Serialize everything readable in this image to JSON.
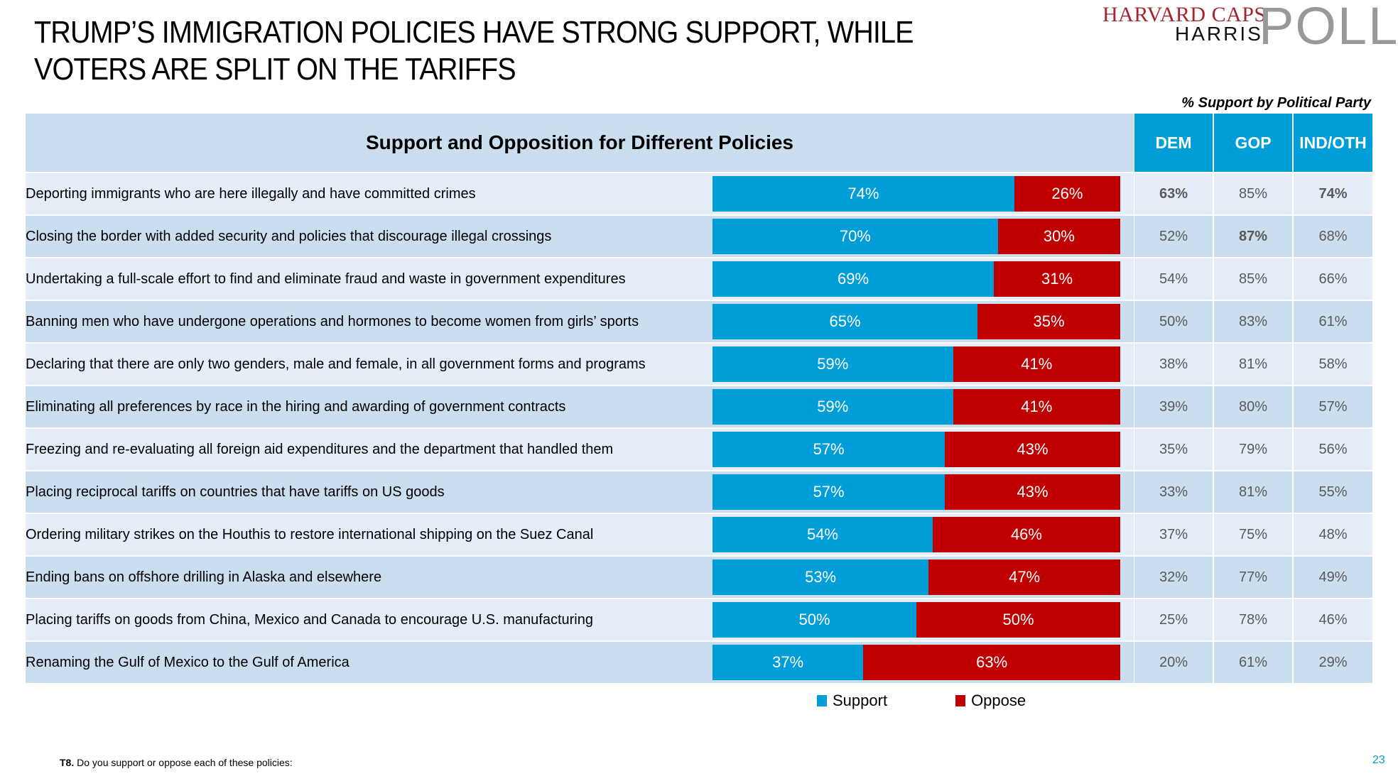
{
  "title": "TRUMP’S IMMIGRATION POLICIES HAVE STRONG SUPPORT, WHILE VOTERS ARE SPLIT ON THE TARIFFS",
  "title_lines": [
    "TRUMP’S IMMIGRATION POLICIES HAVE STRONG SUPPORT, WHILE",
    "VOTERS ARE SPLIT ON THE TARIFFS"
  ],
  "logo": {
    "line1": "HARVARD CAPS",
    "line2": "HARRIS",
    "mark": "POLL"
  },
  "party_caption": "% Support by Political Party",
  "table_header": "Support and Opposition for Different Policies",
  "party_columns": [
    "DEM",
    "GOP",
    "IND/OTH"
  ],
  "colors": {
    "support": "#009ed9",
    "oppose": "#c00000",
    "header_party": "#009ed9",
    "row_light": "#e5eef8",
    "row_dark": "#cbdef0",
    "page_number": "#009ed9"
  },
  "legend": {
    "support": "Support",
    "oppose": "Oppose"
  },
  "footnote": {
    "code": "T8.",
    "text": " Do you support or oppose each of these policies:"
  },
  "page_number": "23",
  "chart_data": {
    "type": "bar",
    "orientation": "horizontal",
    "stacked": true,
    "title": "Support and Opposition for Different Policies",
    "xlabel": "",
    "ylabel": "",
    "xlim": [
      0,
      100
    ],
    "legend_position": "bottom",
    "categories": [
      "Deporting immigrants who are here illegally and have committed crimes",
      "Closing the border with added security and policies that discourage illegal crossings",
      "Undertaking a full-scale effort to find and eliminate fraud and waste in government expenditures",
      "Banning men who have undergone operations and hormones to become women from girls’ sports",
      "Declaring that there are only two genders, male and female, in all government forms and programs",
      "Eliminating all preferences by race in the hiring and awarding of government contracts",
      "Freezing and re-evaluating all foreign aid expenditures and the department that handled them",
      "Placing reciprocal tariffs on countries that have tariffs on US goods",
      "Ordering military strikes on the Houthis to restore international shipping on the Suez Canal",
      "Ending bans on offshore drilling in Alaska and elsewhere",
      "Placing tariffs on goods from China, Mexico and Canada to encourage U.S. manufacturing",
      "Renaming the Gulf of Mexico to the Gulf of America"
    ],
    "series": [
      {
        "name": "Support",
        "values": [
          74,
          70,
          69,
          65,
          59,
          59,
          57,
          57,
          54,
          53,
          50,
          37
        ]
      },
      {
        "name": "Oppose",
        "values": [
          26,
          30,
          31,
          35,
          41,
          41,
          43,
          43,
          46,
          47,
          50,
          63
        ]
      }
    ],
    "party_support": {
      "title": "% Support by Political Party",
      "columns": [
        "DEM",
        "GOP",
        "IND/OTH"
      ],
      "rows": [
        {
          "values": [
            "63%",
            "85%",
            "74%"
          ],
          "bold": [
            true,
            false,
            true
          ]
        },
        {
          "values": [
            "52%",
            "87%",
            "68%"
          ],
          "bold": [
            false,
            true,
            false
          ]
        },
        {
          "values": [
            "54%",
            "85%",
            "66%"
          ],
          "bold": [
            false,
            false,
            false
          ]
        },
        {
          "values": [
            "50%",
            "83%",
            "61%"
          ],
          "bold": [
            false,
            false,
            false
          ]
        },
        {
          "values": [
            "38%",
            "81%",
            "58%"
          ],
          "bold": [
            false,
            false,
            false
          ]
        },
        {
          "values": [
            "39%",
            "80%",
            "57%"
          ],
          "bold": [
            false,
            false,
            false
          ]
        },
        {
          "values": [
            "35%",
            "79%",
            "56%"
          ],
          "bold": [
            false,
            false,
            false
          ]
        },
        {
          "values": [
            "33%",
            "81%",
            "55%"
          ],
          "bold": [
            false,
            false,
            false
          ]
        },
        {
          "values": [
            "37%",
            "75%",
            "48%"
          ],
          "bold": [
            false,
            false,
            false
          ]
        },
        {
          "values": [
            "32%",
            "77%",
            "49%"
          ],
          "bold": [
            false,
            false,
            false
          ]
        },
        {
          "values": [
            "25%",
            "78%",
            "46%"
          ],
          "bold": [
            false,
            false,
            false
          ]
        },
        {
          "values": [
            "20%",
            "61%",
            "29%"
          ],
          "bold": [
            false,
            false,
            false
          ]
        }
      ]
    }
  }
}
